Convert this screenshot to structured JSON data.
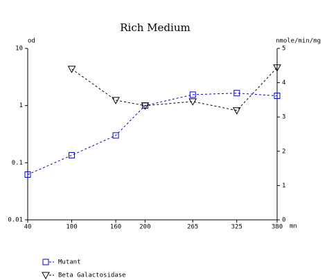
{
  "chart_data": {
    "type": "line",
    "title": "Rich Medium",
    "ylabel": "od",
    "y2label": "nmole/min/mg",
    "xlabel": "mn",
    "xlim": [
      40,
      380
    ],
    "xticks": [
      40,
      100,
      160,
      200,
      265,
      325,
      380
    ],
    "ylim": [
      0.01,
      10
    ],
    "yticks": [
      0.01,
      0.1,
      1,
      10
    ],
    "yscale": "log",
    "y2lim": [
      0,
      5
    ],
    "y2ticks": [
      0,
      1,
      2,
      3,
      4,
      5
    ],
    "series": [
      {
        "name": "Mutant",
        "color": "#0000cc",
        "marker": "square",
        "x": [
          40,
          100,
          160,
          200,
          265,
          325,
          380
        ],
        "values": [
          0.062,
          0.135,
          0.3,
          1.0,
          1.55,
          1.65,
          1.48
        ]
      },
      {
        "name": "Beta Galactosidase",
        "color": "#000000",
        "marker": "triangle-down",
        "axis": "y2",
        "x": [
          100,
          160,
          200,
          265,
          325,
          380
        ],
        "values": [
          4.4,
          3.49,
          3.33,
          3.45,
          3.19,
          4.44
        ]
      }
    ]
  }
}
